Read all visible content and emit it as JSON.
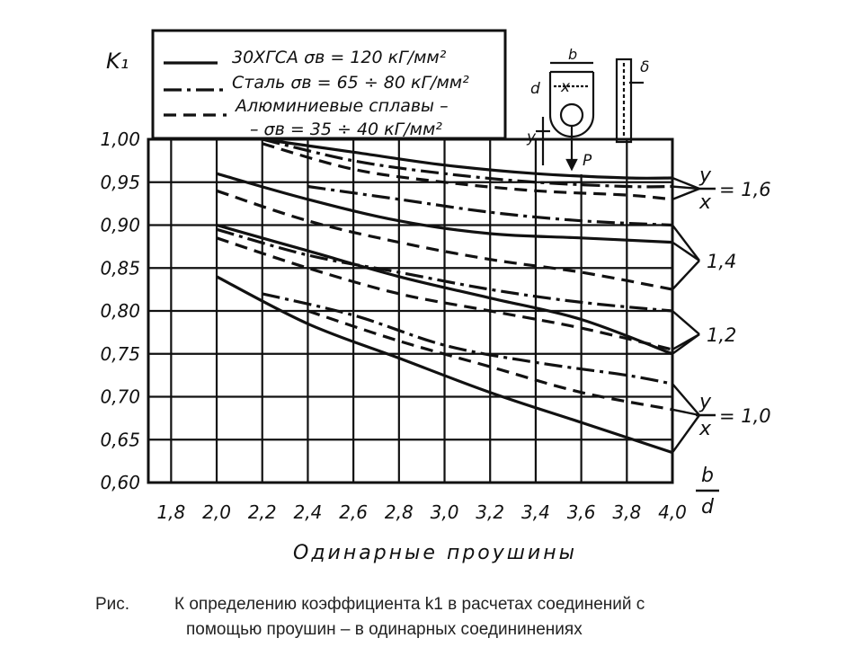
{
  "chart_data": {
    "type": "line",
    "ylabel": "K₁",
    "xlabel": "b/d",
    "subtitle": "Одинарные проушины",
    "xlim": [
      1.7,
      4.0
    ],
    "ylim": [
      0.6,
      1.0
    ],
    "x_ticks": [
      "1,8",
      "2,0",
      "2,2",
      "2,4",
      "2,6",
      "2,8",
      "3,0",
      "3,2",
      "3,4",
      "3,6",
      "3,8",
      "4,0"
    ],
    "y_ticks": [
      "1,00",
      "0,95",
      "0,90",
      "0,85",
      "0,80",
      "0,75",
      "0,70",
      "0,65",
      "0,60"
    ],
    "legend": [
      "30ХГСА σв = 120 кГ/мм²",
      "Сталь σв = 65 ÷ 80 кГ/мм²",
      "Алюминиевые сплавы –",
      "– σв = 35 ÷ 40 кГ/мм²"
    ],
    "groups": [
      {
        "name": "y/x = 1,6",
        "label_top": "y",
        "label_bottom": "x",
        "label_value": "= 1,6"
      },
      {
        "name": "1,4",
        "label_value": "1,4"
      },
      {
        "name": "1,2",
        "label_value": "1,2"
      },
      {
        "name": "y/x = 1,0",
        "label_top": "y",
        "label_bottom": "x",
        "label_value": "= 1,0"
      }
    ],
    "series": [
      {
        "group": "1,6",
        "material": "30ХГСА",
        "style": "solid",
        "x": [
          2.2,
          2.6,
          3.0,
          3.4,
          3.8,
          4.0
        ],
        "y": [
          1.0,
          0.985,
          0.97,
          0.96,
          0.955,
          0.955
        ]
      },
      {
        "group": "1,6",
        "material": "Сталь",
        "style": "dashdot",
        "x": [
          2.2,
          2.6,
          3.0,
          3.4,
          3.8,
          4.0
        ],
        "y": [
          1.0,
          0.975,
          0.96,
          0.95,
          0.945,
          0.945
        ]
      },
      {
        "group": "1,6",
        "material": "Алюминиевые сплавы",
        "style": "dashed",
        "x": [
          2.2,
          2.6,
          3.0,
          3.4,
          3.8,
          4.0
        ],
        "y": [
          0.995,
          0.965,
          0.95,
          0.94,
          0.935,
          0.93
        ]
      },
      {
        "group": "1,4",
        "material": "30ХГСА",
        "style": "solid",
        "x": [
          2.0,
          2.4,
          2.8,
          3.2,
          3.6,
          4.0
        ],
        "y": [
          0.96,
          0.93,
          0.905,
          0.89,
          0.885,
          0.88
        ]
      },
      {
        "group": "1,4",
        "material": "Сталь",
        "style": "dashdot",
        "x": [
          2.4,
          2.8,
          3.2,
          3.6,
          4.0
        ],
        "y": [
          0.945,
          0.93,
          0.915,
          0.905,
          0.9
        ]
      },
      {
        "group": "1,4",
        "material": "Алюминиевые сплавы",
        "style": "dashed",
        "x": [
          2.0,
          2.4,
          2.8,
          3.2,
          3.6,
          4.0
        ],
        "y": [
          0.94,
          0.905,
          0.88,
          0.86,
          0.845,
          0.825
        ]
      },
      {
        "group": "1,2",
        "material": "30ХГСА",
        "style": "solid",
        "x": [
          2.0,
          2.4,
          2.8,
          3.2,
          3.6,
          4.0
        ],
        "y": [
          0.9,
          0.87,
          0.84,
          0.815,
          0.79,
          0.75
        ]
      },
      {
        "group": "1,2",
        "material": "Сталь",
        "style": "dashdot",
        "x": [
          2.0,
          2.4,
          2.8,
          3.2,
          3.6,
          4.0
        ],
        "y": [
          0.895,
          0.865,
          0.845,
          0.825,
          0.81,
          0.8
        ]
      },
      {
        "group": "1,2",
        "material": "Алюминиевые сплавы",
        "style": "dashed",
        "x": [
          2.0,
          2.4,
          2.8,
          3.2,
          3.6,
          4.0
        ],
        "y": [
          0.885,
          0.85,
          0.82,
          0.8,
          0.78,
          0.755
        ]
      },
      {
        "group": "1,0",
        "material": "30ХГСА",
        "style": "solid",
        "x": [
          2.0,
          2.4,
          2.8,
          3.2,
          3.6,
          4.0
        ],
        "y": [
          0.84,
          0.785,
          0.745,
          0.705,
          0.67,
          0.635
        ]
      },
      {
        "group": "1,0",
        "material": "Сталь",
        "style": "dashdot",
        "x": [
          2.2,
          2.6,
          3.0,
          3.4,
          3.8,
          4.0
        ],
        "y": [
          0.82,
          0.795,
          0.76,
          0.74,
          0.725,
          0.715
        ]
      },
      {
        "group": "1,0",
        "material": "Алюминиевые сплавы",
        "style": "dashed",
        "x": [
          2.4,
          2.8,
          3.2,
          3.6,
          4.0
        ],
        "y": [
          0.8,
          0.765,
          0.735,
          0.705,
          0.685
        ]
      }
    ],
    "inset_labels": [
      "b",
      "d",
      "x",
      "δ",
      "y",
      "P"
    ]
  },
  "caption": {
    "label": "Рис.",
    "line1": "К определению коэффициента k1 в расчетах соединений с",
    "line2": "помощью проушин – в одинарных  соедининениях"
  }
}
